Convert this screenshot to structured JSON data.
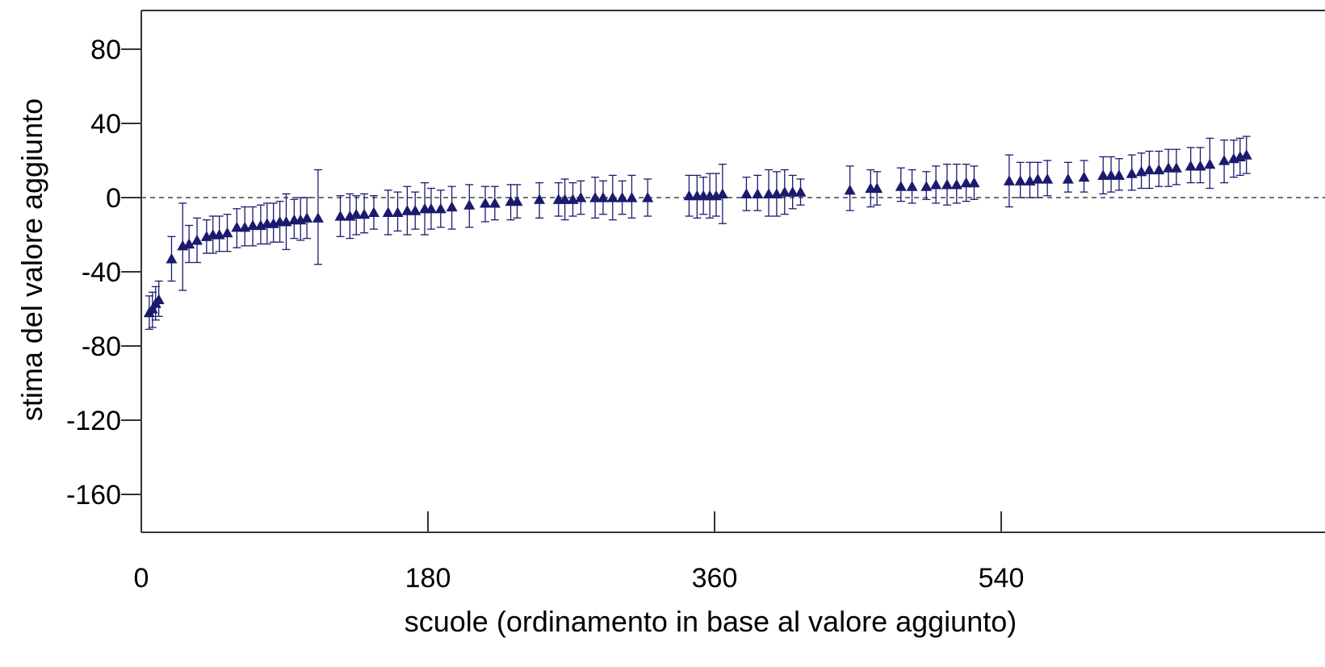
{
  "chart_data": {
    "type": "scatter",
    "xlabel": "scuole (ordinamento in base al valore aggiunto)",
    "ylabel": "stima del valore aggiunto",
    "xlim": [
      0,
      700
    ],
    "ylim": [
      -180,
      100
    ],
    "x_ticks": [
      "0",
      "180",
      "360",
      "540"
    ],
    "y_ticks": [
      "80",
      "40",
      "0",
      "-40",
      "-80",
      "-120",
      "-160"
    ],
    "reference_line": 0,
    "marker": "triangle",
    "color": "#1a1a6e",
    "series": [
      {
        "error_bars": true,
        "points": [
          {
            "x": 5,
            "y": -62,
            "lo": -71,
            "hi": -53
          },
          {
            "x": 7,
            "y": -60,
            "lo": -70,
            "hi": -51
          },
          {
            "x": 9,
            "y": -57,
            "lo": -66,
            "hi": -48
          },
          {
            "x": 11,
            "y": -55,
            "lo": -64,
            "hi": -45
          },
          {
            "x": 19,
            "y": -33,
            "lo": -45,
            "hi": -21
          },
          {
            "x": 26,
            "y": -26,
            "lo": -50,
            "hi": -3
          },
          {
            "x": 30,
            "y": -25,
            "lo": -35,
            "hi": -15
          },
          {
            "x": 35,
            "y": -23,
            "lo": -35,
            "hi": -11
          },
          {
            "x": 41,
            "y": -21,
            "lo": -30,
            "hi": -12
          },
          {
            "x": 45,
            "y": -20,
            "lo": -30,
            "hi": -10
          },
          {
            "x": 49,
            "y": -20,
            "lo": -29,
            "hi": -10
          },
          {
            "x": 54,
            "y": -19,
            "lo": -29,
            "hi": -9
          },
          {
            "x": 60,
            "y": -16,
            "lo": -27,
            "hi": -6
          },
          {
            "x": 65,
            "y": -16,
            "lo": -26,
            "hi": -5
          },
          {
            "x": 70,
            "y": -15,
            "lo": -26,
            "hi": -5
          },
          {
            "x": 75,
            "y": -15,
            "lo": -25,
            "hi": -4
          },
          {
            "x": 79,
            "y": -14,
            "lo": -25,
            "hi": -3
          },
          {
            "x": 83,
            "y": -14,
            "lo": -24,
            "hi": -3
          },
          {
            "x": 87,
            "y": -13,
            "lo": -24,
            "hi": -2
          },
          {
            "x": 91,
            "y": -13,
            "lo": -28,
            "hi": 2
          },
          {
            "x": 96,
            "y": -12,
            "lo": -22,
            "hi": -1
          },
          {
            "x": 100,
            "y": -12,
            "lo": -23,
            "hi": 0
          },
          {
            "x": 104,
            "y": -11,
            "lo": -22,
            "hi": 0
          },
          {
            "x": 111,
            "y": -11,
            "lo": -36,
            "hi": 15
          },
          {
            "x": 125,
            "y": -10,
            "lo": -21,
            "hi": 1
          },
          {
            "x": 131,
            "y": -10,
            "lo": -22,
            "hi": 2
          },
          {
            "x": 135,
            "y": -9,
            "lo": -20,
            "hi": 1
          },
          {
            "x": 140,
            "y": -9,
            "lo": -19,
            "hi": 2
          },
          {
            "x": 146,
            "y": -8,
            "lo": -17,
            "hi": 1
          },
          {
            "x": 155,
            "y": -8,
            "lo": -20,
            "hi": 4
          },
          {
            "x": 161,
            "y": -8,
            "lo": -18,
            "hi": 3
          },
          {
            "x": 167,
            "y": -7,
            "lo": -20,
            "hi": 6
          },
          {
            "x": 172,
            "y": -7,
            "lo": -17,
            "hi": 3
          },
          {
            "x": 178,
            "y": -6,
            "lo": -20,
            "hi": 8
          },
          {
            "x": 182,
            "y": -6,
            "lo": -17,
            "hi": 5
          },
          {
            "x": 188,
            "y": -6,
            "lo": -16,
            "hi": 4
          },
          {
            "x": 195,
            "y": -5,
            "lo": -17,
            "hi": 6
          },
          {
            "x": 206,
            "y": -4,
            "lo": -16,
            "hi": 7
          },
          {
            "x": 216,
            "y": -3,
            "lo": -13,
            "hi": 6
          },
          {
            "x": 222,
            "y": -3,
            "lo": -12,
            "hi": 6
          },
          {
            "x": 232,
            "y": -2,
            "lo": -12,
            "hi": 7
          },
          {
            "x": 236,
            "y": -2,
            "lo": -11,
            "hi": 7
          },
          {
            "x": 250,
            "y": -1,
            "lo": -11,
            "hi": 8
          },
          {
            "x": 262,
            "y": -1,
            "lo": -10,
            "hi": 8
          },
          {
            "x": 266,
            "y": -1,
            "lo": -12,
            "hi": 10
          },
          {
            "x": 271,
            "y": -1,
            "lo": -10,
            "hi": 8
          },
          {
            "x": 276,
            "y": 0,
            "lo": -9,
            "hi": 9
          },
          {
            "x": 285,
            "y": 0,
            "lo": -11,
            "hi": 11
          },
          {
            "x": 290,
            "y": 0,
            "lo": -9,
            "hi": 9
          },
          {
            "x": 296,
            "y": 0,
            "lo": -12,
            "hi": 12
          },
          {
            "x": 302,
            "y": 0,
            "lo": -9,
            "hi": 9
          },
          {
            "x": 308,
            "y": 0,
            "lo": -11,
            "hi": 12
          },
          {
            "x": 318,
            "y": 0,
            "lo": -10,
            "hi": 10
          },
          {
            "x": 344,
            "y": 1,
            "lo": -10,
            "hi": 12
          },
          {
            "x": 349,
            "y": 1,
            "lo": -11,
            "hi": 12
          },
          {
            "x": 353,
            "y": 1,
            "lo": -9,
            "hi": 11
          },
          {
            "x": 357,
            "y": 1,
            "lo": -11,
            "hi": 13
          },
          {
            "x": 361,
            "y": 1,
            "lo": -10,
            "hi": 13
          },
          {
            "x": 365,
            "y": 2,
            "lo": -14,
            "hi": 18
          },
          {
            "x": 380,
            "y": 2,
            "lo": -7,
            "hi": 11
          },
          {
            "x": 387,
            "y": 2,
            "lo": -7,
            "hi": 12
          },
          {
            "x": 394,
            "y": 2,
            "lo": -10,
            "hi": 15
          },
          {
            "x": 399,
            "y": 2,
            "lo": -10,
            "hi": 14
          },
          {
            "x": 404,
            "y": 3,
            "lo": -9,
            "hi": 15
          },
          {
            "x": 409,
            "y": 3,
            "lo": -6,
            "hi": 12
          },
          {
            "x": 414,
            "y": 3,
            "lo": -4,
            "hi": 10
          },
          {
            "x": 445,
            "y": 4,
            "lo": -7,
            "hi": 17
          },
          {
            "x": 458,
            "y": 5,
            "lo": -5,
            "hi": 15
          },
          {
            "x": 462,
            "y": 5,
            "lo": -4,
            "hi": 14
          },
          {
            "x": 477,
            "y": 6,
            "lo": -2,
            "hi": 16
          },
          {
            "x": 484,
            "y": 6,
            "lo": -3,
            "hi": 15
          },
          {
            "x": 493,
            "y": 6,
            "lo": -1,
            "hi": 14
          },
          {
            "x": 499,
            "y": 7,
            "lo": -3,
            "hi": 17
          },
          {
            "x": 506,
            "y": 7,
            "lo": -4,
            "hi": 18
          },
          {
            "x": 512,
            "y": 7,
            "lo": -3,
            "hi": 18
          },
          {
            "x": 518,
            "y": 8,
            "lo": -2,
            "hi": 18
          },
          {
            "x": 523,
            "y": 8,
            "lo": -1,
            "hi": 17
          },
          {
            "x": 545,
            "y": 9,
            "lo": -5,
            "hi": 23
          },
          {
            "x": 552,
            "y": 9,
            "lo": 0,
            "hi": 19
          },
          {
            "x": 558,
            "y": 9,
            "lo": 0,
            "hi": 19
          },
          {
            "x": 563,
            "y": 10,
            "lo": 0,
            "hi": 19
          },
          {
            "x": 569,
            "y": 10,
            "lo": 1,
            "hi": 20
          },
          {
            "x": 582,
            "y": 10,
            "lo": 3,
            "hi": 19
          },
          {
            "x": 592,
            "y": 11,
            "lo": 3,
            "hi": 20
          },
          {
            "x": 604,
            "y": 12,
            "lo": 2,
            "hi": 22
          },
          {
            "x": 609,
            "y": 12,
            "lo": 3,
            "hi": 22
          },
          {
            "x": 614,
            "y": 12,
            "lo": 4,
            "hi": 21
          },
          {
            "x": 622,
            "y": 13,
            "lo": 4,
            "hi": 23
          },
          {
            "x": 628,
            "y": 14,
            "lo": 5,
            "hi": 24
          },
          {
            "x": 633,
            "y": 15,
            "lo": 5,
            "hi": 25
          },
          {
            "x": 639,
            "y": 15,
            "lo": 6,
            "hi": 25
          },
          {
            "x": 645,
            "y": 16,
            "lo": 6,
            "hi": 26
          },
          {
            "x": 650,
            "y": 16,
            "lo": 7,
            "hi": 26
          },
          {
            "x": 659,
            "y": 17,
            "lo": 8,
            "hi": 27
          },
          {
            "x": 665,
            "y": 17,
            "lo": 8,
            "hi": 27
          },
          {
            "x": 671,
            "y": 18,
            "lo": 5,
            "hi": 32
          },
          {
            "x": 680,
            "y": 20,
            "lo": 8,
            "hi": 31
          },
          {
            "x": 686,
            "y": 21,
            "lo": 11,
            "hi": 31
          },
          {
            "x": 690,
            "y": 22,
            "lo": 12,
            "hi": 32
          },
          {
            "x": 694,
            "y": 23,
            "lo": 13,
            "hi": 33
          }
        ]
      }
    ]
  }
}
